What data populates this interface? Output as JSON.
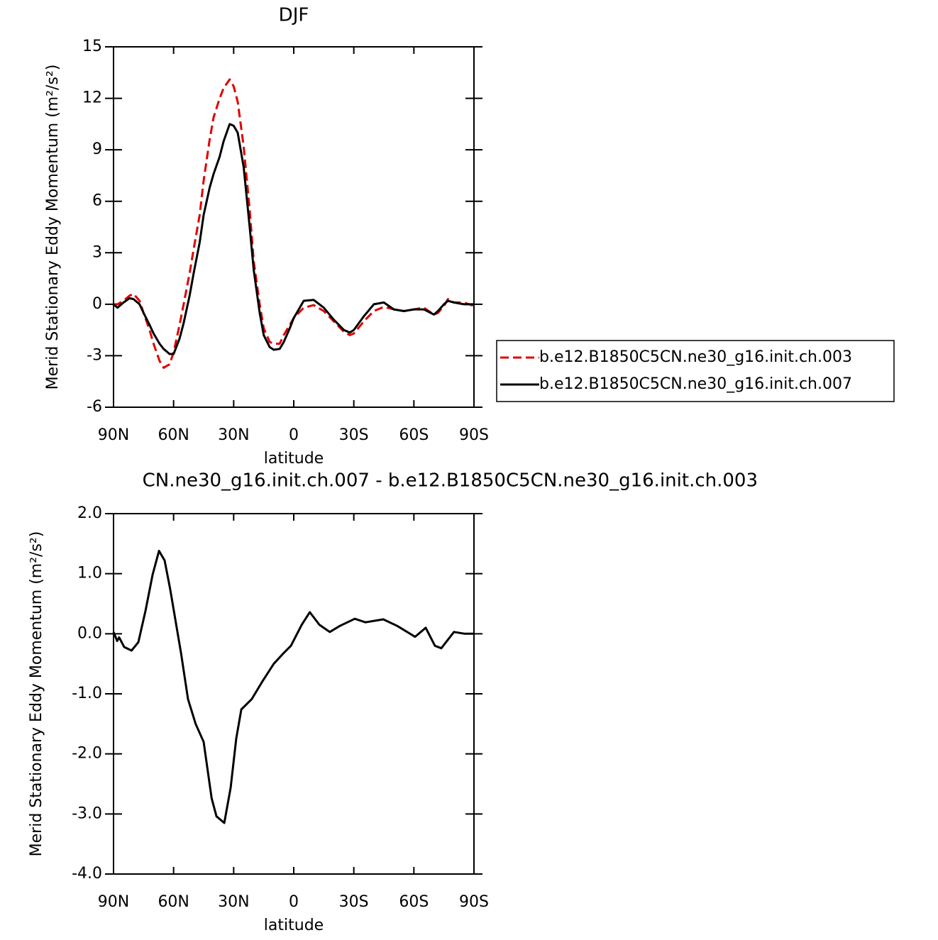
{
  "chart_data": [
    {
      "type": "line",
      "title": "DJF",
      "xlabel": "latitude",
      "ylabel": "Merid Stationary Eddy Momentum (m²/s²)",
      "xlim": [
        90,
        -90
      ],
      "ylim": [
        -6,
        15
      ],
      "xticks": [
        {
          "value": 90,
          "label": "90N"
        },
        {
          "value": 60,
          "label": "60N"
        },
        {
          "value": 30,
          "label": "30N"
        },
        0,
        {
          "value": -30,
          "label": "30S"
        },
        {
          "value": -60,
          "label": "60S"
        },
        {
          "value": -90,
          "label": "90S"
        }
      ],
      "yticks": [
        -6,
        -3,
        0,
        3,
        6,
        9,
        12,
        15
      ],
      "legend": "right",
      "x": [
        90,
        88,
        85,
        82,
        80,
        77,
        75,
        72,
        70,
        67,
        65,
        62,
        60,
        57,
        55,
        52,
        50,
        47,
        45,
        42,
        40,
        37,
        35,
        32,
        30,
        28,
        25,
        22,
        20,
        17,
        15,
        12,
        10,
        7,
        5,
        2,
        0,
        -5,
        -10,
        -15,
        -20,
        -25,
        -28,
        -30,
        -35,
        -40,
        -45,
        -50,
        -55,
        -60,
        -65,
        -70,
        -72,
        -75,
        -77,
        -80,
        -85,
        -90
      ],
      "series": [
        {
          "name": "b.e12.B1850C5CN.ne30_g16.init.ch.003",
          "color": "#e00000",
          "dash": true,
          "values": [
            0,
            0,
            0.2,
            0.5,
            0.6,
            0.2,
            -0.5,
            -1.5,
            -2.3,
            -3.3,
            -3.7,
            -3.5,
            -2.8,
            -1.2,
            0,
            1.8,
            3.2,
            5.2,
            7.2,
            9.6,
            10.9,
            12.0,
            12.6,
            13.1,
            12.7,
            11.8,
            9.2,
            5.5,
            2.5,
            0,
            -1.4,
            -2.2,
            -2.3,
            -2.3,
            -1.8,
            -1.2,
            -0.8,
            -0.2,
            -0.05,
            -0.4,
            -1.0,
            -1.6,
            -1.8,
            -1.7,
            -1.0,
            -0.4,
            -0.15,
            -0.3,
            -0.4,
            -0.3,
            -0.2,
            -0.6,
            -0.5,
            -0.1,
            0.3,
            0.1,
            0.1,
            -0.1
          ]
        },
        {
          "name": "b.e12.B1850C5CN.ne30_g16.init.ch.007",
          "color": "#000000",
          "dash": false,
          "values": [
            0,
            -0.2,
            0.1,
            0.35,
            0.3,
            0,
            -0.5,
            -1.2,
            -1.7,
            -2.3,
            -2.6,
            -2.9,
            -2.9,
            -2.0,
            -1.1,
            0.5,
            1.8,
            3.6,
            5.2,
            6.8,
            7.6,
            8.6,
            9.5,
            10.5,
            10.4,
            10.0,
            8.0,
            4.5,
            2.0,
            -0.5,
            -1.8,
            -2.5,
            -2.65,
            -2.6,
            -2.2,
            -1.4,
            -0.8,
            0.2,
            0.25,
            -0.2,
            -0.9,
            -1.5,
            -1.65,
            -1.5,
            -0.7,
            0,
            0.1,
            -0.3,
            -0.4,
            -0.3,
            -0.3,
            -0.6,
            -0.4,
            0,
            0.2,
            0.1,
            0,
            0
          ]
        }
      ]
    },
    {
      "type": "line",
      "title": "CN.ne30_g16.init.ch.007 - b.e12.B1850C5CN.ne30_g16.init.ch.003",
      "xlabel": "latitude",
      "ylabel": "Merid Stationary Eddy Momentum (m²/s²)",
      "xlim": [
        90,
        -90
      ],
      "ylim": [
        -4,
        2
      ],
      "xticks": [
        {
          "value": 90,
          "label": "90N"
        },
        {
          "value": 60,
          "label": "60N"
        },
        {
          "value": 30,
          "label": "30N"
        },
        0,
        {
          "value": -30,
          "label": "30S"
        },
        {
          "value": -60,
          "label": "60S"
        },
        {
          "value": -90,
          "label": "90S"
        }
      ],
      "yticks": [
        {
          "value": -4,
          "label": "-4.0"
        },
        {
          "value": -3,
          "label": "-3.0"
        },
        {
          "value": -2,
          "label": "-2.0"
        },
        {
          "value": -1,
          "label": "-1.0"
        },
        {
          "value": 0,
          "label": "0.0"
        },
        {
          "value": 1,
          "label": "1.0"
        },
        {
          "value": 2,
          "label": "2.0"
        }
      ],
      "x": [
        90,
        88.2,
        87.2,
        84.7,
        81,
        77.6,
        74,
        70.5,
        67.3,
        64.5,
        61.7,
        56.3,
        52.8,
        49,
        45,
        41,
        38.6,
        34.7,
        31.5,
        28.7,
        26.2,
        21,
        15.6,
        10,
        5,
        1.4,
        -4,
        -8,
        -12.8,
        -18,
        -23,
        -30.5,
        -35.8,
        -44.7,
        -51.7,
        -60.6,
        -65.9,
        -70.5,
        -73.7,
        -80,
        -85.4,
        -90
      ],
      "series": [
        {
          "color": "#000000",
          "dash": false,
          "values": [
            0.03,
            -0.12,
            -0.06,
            -0.22,
            -0.28,
            -0.14,
            0.39,
            0.98,
            1.38,
            1.22,
            0.74,
            -0.32,
            -1.09,
            -1.5,
            -1.8,
            -2.74,
            -3.04,
            -3.15,
            -2.56,
            -1.74,
            -1.26,
            -1.09,
            -0.79,
            -0.5,
            -0.32,
            -0.2,
            0.15,
            0.36,
            0.15,
            0.03,
            0.13,
            0.25,
            0.19,
            0.24,
            0.13,
            -0.05,
            0.1,
            -0.2,
            -0.24,
            0.03,
            0,
            0
          ]
        }
      ]
    }
  ]
}
